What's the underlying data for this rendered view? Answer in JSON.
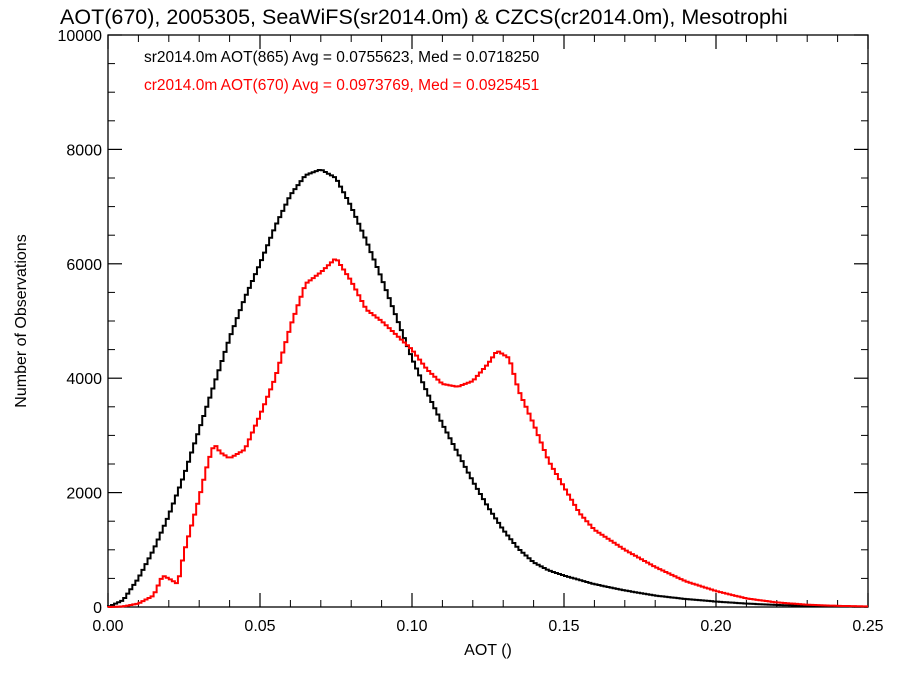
{
  "chart_data": {
    "type": "line",
    "title": "AOT(670), 2005305, SeaWiFS(sr2014.0m) & CZCS(cr2014.0m), Mesotrophi",
    "xlabel": "AOT ()",
    "ylabel": "Number of Observations",
    "xlim": [
      0.0,
      0.25
    ],
    "ylim": [
      0,
      10000
    ],
    "xticks": [
      0.0,
      0.05,
      0.1,
      0.15,
      0.2,
      0.25
    ],
    "xtick_labels": [
      "0.00",
      "0.05",
      "0.10",
      "0.15",
      "0.20",
      "0.25"
    ],
    "yticks": [
      0,
      2000,
      4000,
      6000,
      8000,
      10000
    ],
    "ytick_labels": [
      "0",
      "2000",
      "4000",
      "6000",
      "8000",
      "10000"
    ],
    "grid": false,
    "legend_position": "top-left",
    "step": true,
    "series": [
      {
        "name": "sr2014.0m AOT(865) Avg = 0.0755623, Med = 0.0718250",
        "color": "#000000",
        "x": [
          0.0,
          0.005,
          0.01,
          0.015,
          0.02,
          0.025,
          0.03,
          0.035,
          0.04,
          0.045,
          0.05,
          0.055,
          0.06,
          0.065,
          0.07,
          0.075,
          0.08,
          0.085,
          0.09,
          0.095,
          0.1,
          0.105,
          0.11,
          0.115,
          0.12,
          0.125,
          0.13,
          0.135,
          0.14,
          0.145,
          0.15,
          0.16,
          0.17,
          0.18,
          0.19,
          0.2,
          0.21,
          0.22,
          0.23,
          0.24,
          0.25
        ],
        "y": [
          0,
          120,
          500,
          1000,
          1600,
          2300,
          3100,
          3900,
          4700,
          5400,
          6000,
          6650,
          7200,
          7550,
          7650,
          7500,
          7000,
          6400,
          5750,
          5050,
          4350,
          3750,
          3200,
          2700,
          2200,
          1750,
          1350,
          1020,
          780,
          640,
          550,
          400,
          290,
          200,
          140,
          95,
          60,
          35,
          20,
          10,
          5
        ]
      },
      {
        "name": "cr2014.0m AOT(670) Avg = 0.0973769, Med = 0.0925451",
        "color": "#ff0000",
        "x": [
          0.0,
          0.005,
          0.01,
          0.015,
          0.018,
          0.02,
          0.023,
          0.025,
          0.03,
          0.033,
          0.035,
          0.037,
          0.04,
          0.045,
          0.05,
          0.055,
          0.06,
          0.065,
          0.07,
          0.075,
          0.08,
          0.085,
          0.09,
          0.095,
          0.1,
          0.105,
          0.11,
          0.115,
          0.12,
          0.125,
          0.128,
          0.132,
          0.135,
          0.14,
          0.145,
          0.15,
          0.155,
          0.16,
          0.17,
          0.18,
          0.19,
          0.2,
          0.21,
          0.22,
          0.23,
          0.24,
          0.25
        ],
        "y": [
          0,
          10,
          60,
          200,
          550,
          500,
          400,
          950,
          1900,
          2550,
          2850,
          2700,
          2600,
          2750,
          3350,
          4000,
          4900,
          5650,
          5850,
          6100,
          5700,
          5200,
          5000,
          4750,
          4500,
          4150,
          3900,
          3850,
          3950,
          4250,
          4480,
          4350,
          3800,
          3200,
          2550,
          2100,
          1650,
          1350,
          1000,
          700,
          450,
          280,
          150,
          80,
          40,
          20,
          10
        ]
      }
    ]
  }
}
